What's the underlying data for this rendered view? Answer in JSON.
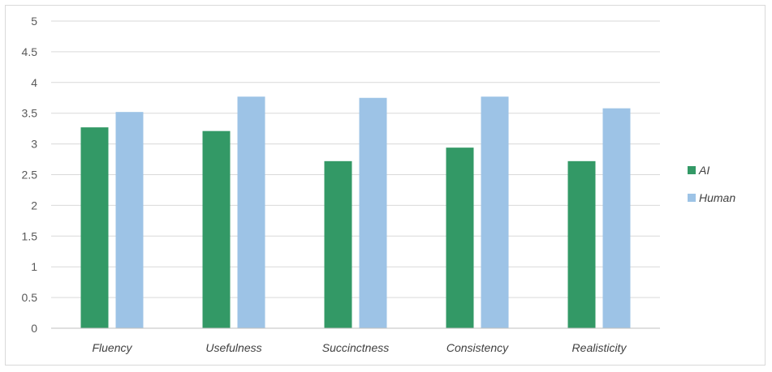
{
  "chart_data": {
    "type": "bar",
    "categories": [
      "Fluency",
      "Usefulness",
      "Succinctness",
      "Consistency",
      "Realisticity"
    ],
    "series": [
      {
        "name": "AI",
        "color": "#339966",
        "values": [
          3.27,
          3.21,
          2.72,
          2.94,
          2.72
        ]
      },
      {
        "name": "Human",
        "color": "#9dc3e6",
        "values": [
          3.52,
          3.77,
          3.75,
          3.77,
          3.58
        ]
      }
    ],
    "yticks": [
      "0",
      "0.5",
      "1",
      "1.5",
      "2",
      "2.5",
      "3",
      "3.5",
      "4",
      "4.5",
      "5"
    ],
    "ylim": [
      0,
      5
    ],
    "grid": true,
    "legend_position": "right",
    "title": "",
    "xlabel": "",
    "ylabel": ""
  }
}
